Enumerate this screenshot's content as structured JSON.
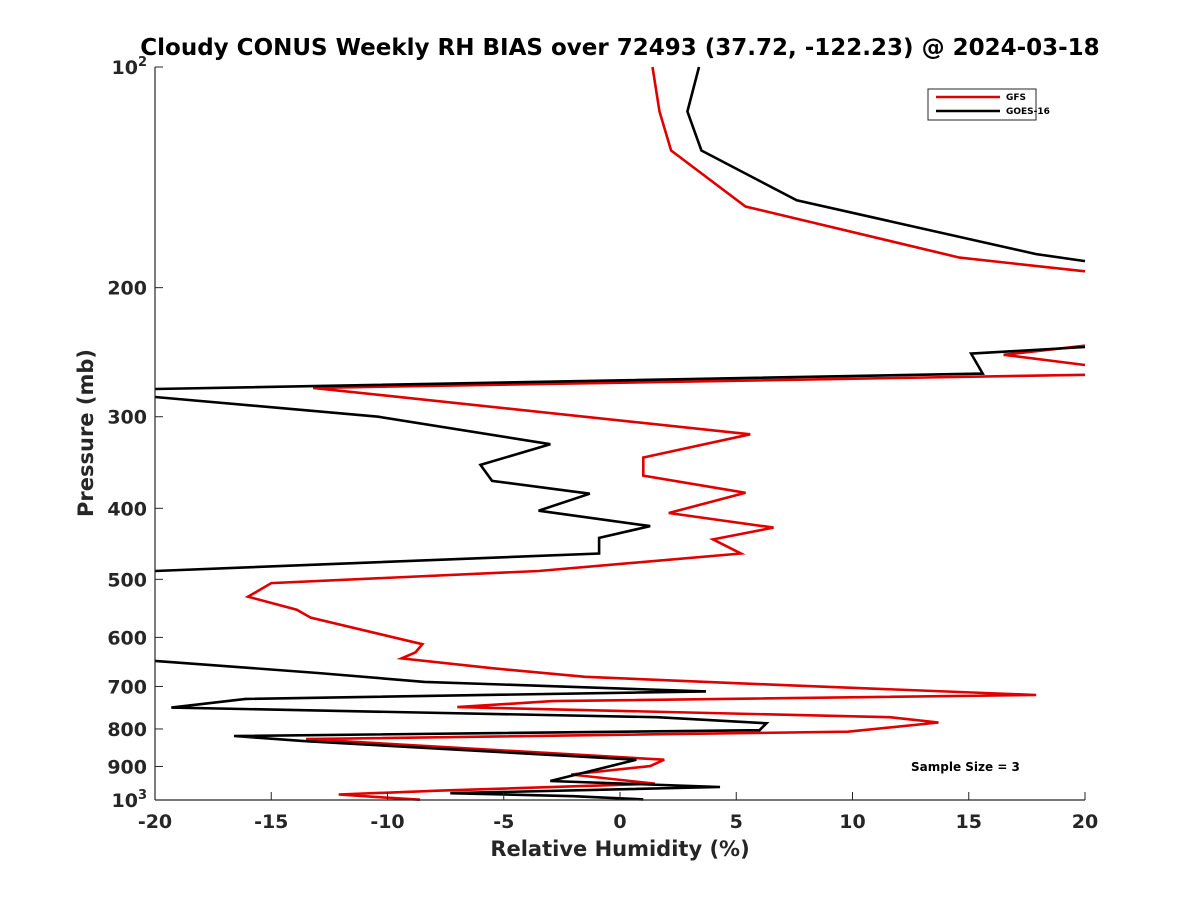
{
  "chart_data": {
    "type": "line",
    "title": "Cloudy CONUS Weekly RH BIAS over 72493 (37.72, -122.23) @ 2024-03-18",
    "xlabel": "Relative Humidity (%)",
    "ylabel": "Pressure (mb)",
    "xlim": [
      -20,
      20
    ],
    "ylim": [
      100,
      1000
    ],
    "yscale": "log",
    "y_reversed": true,
    "grid": false,
    "legend_position": "top-right",
    "x_ticks": [
      "-20",
      "-15",
      "-10",
      "-5",
      "0",
      "5",
      "10",
      "15",
      "20"
    ],
    "x_tick_values": [
      -20,
      -15,
      -10,
      -5,
      0,
      5,
      10,
      15,
      20
    ],
    "y_ticks": [
      {
        "value": 100,
        "base": "10",
        "exp": "2"
      },
      {
        "value": 200,
        "label": "200"
      },
      {
        "value": 300,
        "label": "300"
      },
      {
        "value": 400,
        "label": "400"
      },
      {
        "value": 500,
        "label": "500"
      },
      {
        "value": 600,
        "label": "600"
      },
      {
        "value": 700,
        "label": "700"
      },
      {
        "value": 800,
        "label": "800"
      },
      {
        "value": 900,
        "label": "900"
      },
      {
        "value": 1000,
        "base": "10",
        "exp": "3"
      }
    ],
    "annotation": "Sample Size = 3",
    "series": [
      {
        "name": "GFS",
        "color": "#e00000",
        "points": [
          [
            1.4,
            100
          ],
          [
            1.7,
            115
          ],
          [
            2.2,
            130
          ],
          [
            5.4,
            155
          ],
          [
            14.6,
            182
          ],
          [
            20,
            190
          ],
          [
            null,
            null
          ],
          [
            20,
            255
          ],
          [
            16.5,
            247
          ],
          [
            20,
            240
          ],
          [
            null,
            null
          ],
          [
            20,
            263
          ],
          [
            -13.2,
            274
          ],
          [
            5.6,
            317
          ],
          [
            1.0,
            341
          ],
          [
            1.0,
            361
          ],
          [
            5.4,
            381
          ],
          [
            2.1,
            406
          ],
          [
            6.6,
            425
          ],
          [
            4.0,
            441
          ],
          [
            5.2,
            461
          ],
          [
            -3.5,
            487
          ],
          [
            -15.0,
            506
          ],
          [
            -16.0,
            528
          ],
          [
            -13.9,
            550
          ],
          [
            -13.3,
            564
          ],
          [
            -8.5,
            613
          ],
          [
            -8.8,
            629
          ],
          [
            -9.4,
            641
          ],
          [
            -5.5,
            661
          ],
          [
            -1.5,
            679
          ],
          [
            7.0,
            697
          ],
          [
            17.9,
            719
          ],
          [
            -2.9,
            733
          ],
          [
            -7.0,
            747
          ],
          [
            11.6,
            771
          ],
          [
            13.7,
            784
          ],
          [
            9.8,
            807
          ],
          [
            -13.5,
            826
          ],
          [
            1.9,
            881
          ],
          [
            1.3,
            899
          ],
          [
            -2.1,
            923
          ],
          [
            1.5,
            950
          ],
          [
            -7.7,
            971
          ],
          [
            -12.1,
            983
          ],
          [
            -10.6,
            990
          ],
          [
            -8.6,
            999
          ]
        ]
      },
      {
        "name": "GOES-16",
        "color": "#000000",
        "points": [
          [
            3.4,
            100
          ],
          [
            2.9,
            115
          ],
          [
            3.5,
            130
          ],
          [
            7.6,
            152
          ],
          [
            17.9,
            180
          ],
          [
            20,
            184
          ],
          [
            null,
            null
          ],
          [
            20,
            241
          ],
          [
            15.1,
            246
          ],
          [
            15.6,
            262
          ],
          [
            -20,
            275
          ],
          [
            null,
            null
          ],
          [
            -20,
            282
          ],
          [
            -10.4,
            300
          ],
          [
            -3.0,
            327
          ],
          [
            -6.0,
            349
          ],
          [
            -5.5,
            367
          ],
          [
            -1.3,
            382
          ],
          [
            -3.5,
            403
          ],
          [
            1.3,
            423
          ],
          [
            -0.9,
            439
          ],
          [
            -0.9,
            461
          ],
          [
            -20,
            487
          ],
          [
            null,
            null
          ],
          [
            -20,
            646
          ],
          [
            -13.0,
            671
          ],
          [
            -8.4,
            690
          ],
          [
            3.7,
            711
          ],
          [
            -16.1,
            728
          ],
          [
            -19.3,
            748
          ],
          [
            1.6,
            771
          ],
          [
            6.3,
            786
          ],
          [
            6.0,
            803
          ],
          [
            -16.6,
            818
          ],
          [
            -13.6,
            831
          ],
          [
            0.7,
            881
          ],
          [
            -3.0,
            942
          ],
          [
            4.3,
            960
          ],
          [
            -7.3,
            979
          ],
          [
            -2.0,
            988
          ],
          [
            1.0,
            998
          ]
        ]
      }
    ]
  }
}
